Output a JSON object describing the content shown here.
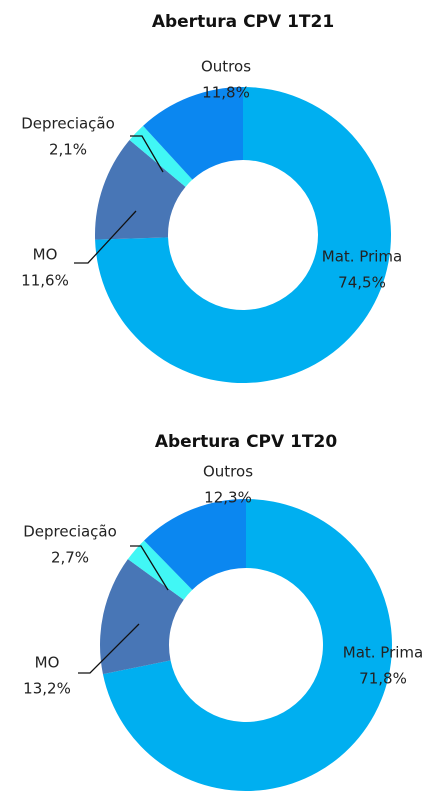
{
  "chart_data": [
    {
      "type": "pie",
      "title": "Abertura CPV 1T21",
      "categories": [
        "Mat. Prima",
        "MO",
        "Depreciação",
        "Outros"
      ],
      "values": [
        74.5,
        11.6,
        2.1,
        11.8
      ],
      "value_labels": [
        "74,5%",
        "11,6%",
        "2,1%",
        "11,8%"
      ],
      "colors": [
        "#00aff0",
        "#4876b6",
        "#41f7f5",
        "#0b87f0"
      ]
    },
    {
      "type": "pie",
      "title": "Abertura CPV 1T20",
      "categories": [
        "Mat. Prima",
        "MO",
        "Depreciação",
        "Outros"
      ],
      "values": [
        71.8,
        13.2,
        2.7,
        12.3
      ],
      "value_labels": [
        "71,8%",
        "13,2%",
        "2,7%",
        "12,3%"
      ],
      "colors": [
        "#00aff0",
        "#4876b6",
        "#41f7f5",
        "#0b87f0"
      ]
    }
  ]
}
